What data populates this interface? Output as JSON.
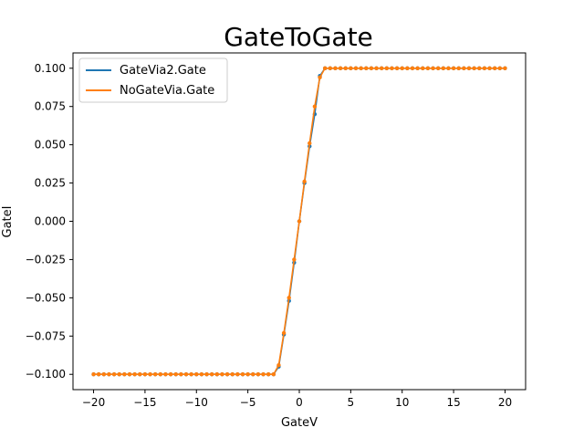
{
  "chart_data": {
    "type": "line",
    "title": "GateToGate",
    "xlabel": "GateV",
    "ylabel": "GateI",
    "xlim": [
      -22,
      22
    ],
    "ylim": [
      -0.11,
      0.11
    ],
    "xticks": [
      -20,
      -15,
      -10,
      -5,
      0,
      5,
      10,
      15,
      20
    ],
    "xtick_labels": [
      "−20",
      "−15",
      "−10",
      "−5",
      "0",
      "5",
      "10",
      "15",
      "20"
    ],
    "yticks": [
      -0.1,
      -0.075,
      -0.05,
      -0.025,
      0.0,
      0.025,
      0.05,
      0.075,
      0.1
    ],
    "ytick_labels": [
      "−0.100",
      "−0.075",
      "−0.050",
      "−0.025",
      "0.000",
      "0.025",
      "0.050",
      "0.075",
      "0.100"
    ],
    "grid": false,
    "legend_position": "top-left",
    "x": [
      -20.0,
      -19.5,
      -19.0,
      -18.5,
      -18.0,
      -17.5,
      -17.0,
      -16.5,
      -16.0,
      -15.5,
      -15.0,
      -14.5,
      -14.0,
      -13.5,
      -13.0,
      -12.5,
      -12.0,
      -11.5,
      -11.0,
      -10.5,
      -10.0,
      -9.5,
      -9.0,
      -8.5,
      -8.0,
      -7.5,
      -7.0,
      -6.5,
      -6.0,
      -5.5,
      -5.0,
      -4.5,
      -4.0,
      -3.5,
      -3.0,
      -2.5,
      -2.0,
      -1.5,
      -1.0,
      -0.5,
      0.0,
      0.5,
      1.0,
      1.5,
      2.0,
      2.5,
      3.0,
      3.5,
      4.0,
      4.5,
      5.0,
      5.5,
      6.0,
      6.5,
      7.0,
      7.5,
      8.0,
      8.5,
      9.0,
      9.5,
      10.0,
      10.5,
      11.0,
      11.5,
      12.0,
      12.5,
      13.0,
      13.5,
      14.0,
      14.5,
      15.0,
      15.5,
      16.0,
      16.5,
      17.0,
      17.5,
      18.0,
      18.5,
      19.0,
      19.5,
      20.0
    ],
    "series": [
      {
        "name": "GateVia2.Gate",
        "color": "#1f77b4",
        "values": [
          -0.1,
          -0.1,
          -0.1,
          -0.1,
          -0.1,
          -0.1,
          -0.1,
          -0.1,
          -0.1,
          -0.1,
          -0.1,
          -0.1,
          -0.1,
          -0.1,
          -0.1,
          -0.1,
          -0.1,
          -0.1,
          -0.1,
          -0.1,
          -0.1,
          -0.1,
          -0.1,
          -0.1,
          -0.1,
          -0.1,
          -0.1,
          -0.1,
          -0.1,
          -0.1,
          -0.1,
          -0.1,
          -0.1,
          -0.1,
          -0.1,
          -0.1,
          -0.095,
          -0.074,
          -0.052,
          -0.027,
          0.0,
          0.025,
          0.049,
          0.07,
          0.095,
          0.1,
          0.1,
          0.1,
          0.1,
          0.1,
          0.1,
          0.1,
          0.1,
          0.1,
          0.1,
          0.1,
          0.1,
          0.1,
          0.1,
          0.1,
          0.1,
          0.1,
          0.1,
          0.1,
          0.1,
          0.1,
          0.1,
          0.1,
          0.1,
          0.1,
          0.1,
          0.1,
          0.1,
          0.1,
          0.1,
          0.1,
          0.1,
          0.1,
          0.1,
          0.1,
          0.1
        ]
      },
      {
        "name": "NoGateVia.Gate",
        "color": "#ff7f0e",
        "values": [
          -0.1,
          -0.1,
          -0.1,
          -0.1,
          -0.1,
          -0.1,
          -0.1,
          -0.1,
          -0.1,
          -0.1,
          -0.1,
          -0.1,
          -0.1,
          -0.1,
          -0.1,
          -0.1,
          -0.1,
          -0.1,
          -0.1,
          -0.1,
          -0.1,
          -0.1,
          -0.1,
          -0.1,
          -0.1,
          -0.1,
          -0.1,
          -0.1,
          -0.1,
          -0.1,
          -0.1,
          -0.1,
          -0.1,
          -0.1,
          -0.1,
          -0.1,
          -0.094,
          -0.073,
          -0.05,
          -0.025,
          0.0,
          0.026,
          0.051,
          0.075,
          0.094,
          0.1,
          0.1,
          0.1,
          0.1,
          0.1,
          0.1,
          0.1,
          0.1,
          0.1,
          0.1,
          0.1,
          0.1,
          0.1,
          0.1,
          0.1,
          0.1,
          0.1,
          0.1,
          0.1,
          0.1,
          0.1,
          0.1,
          0.1,
          0.1,
          0.1,
          0.1,
          0.1,
          0.1,
          0.1,
          0.1,
          0.1,
          0.1,
          0.1,
          0.1,
          0.1,
          0.1
        ]
      }
    ]
  }
}
